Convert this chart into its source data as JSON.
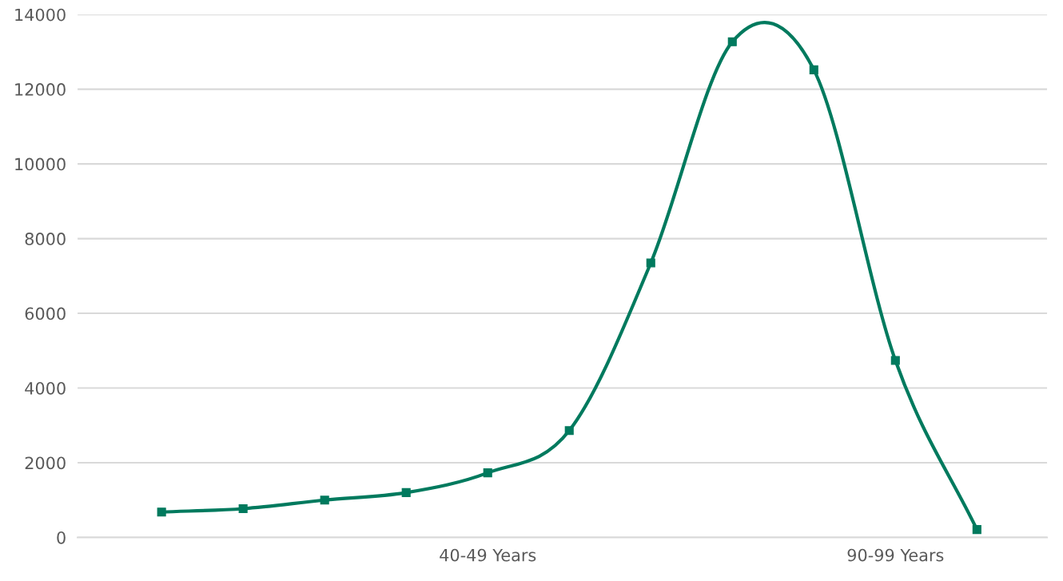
{
  "chart_data": {
    "type": "line",
    "categories": [
      null,
      null,
      null,
      null,
      "40-49 Years",
      null,
      null,
      null,
      null,
      "90-99 Years",
      null
    ],
    "series": [
      {
        "color": "#007a5e",
        "values": [
          680,
          770,
          1000,
          1200,
          1730,
          2860,
          7350,
          13270,
          12520,
          4740,
          210
        ]
      }
    ],
    "ylim": [
      0,
      14000
    ],
    "yticks": [
      0,
      2000,
      4000,
      6000,
      8000,
      10000,
      12000,
      14000
    ],
    "grid": "y",
    "legend": false,
    "marker": "square",
    "line_style": "solid"
  }
}
